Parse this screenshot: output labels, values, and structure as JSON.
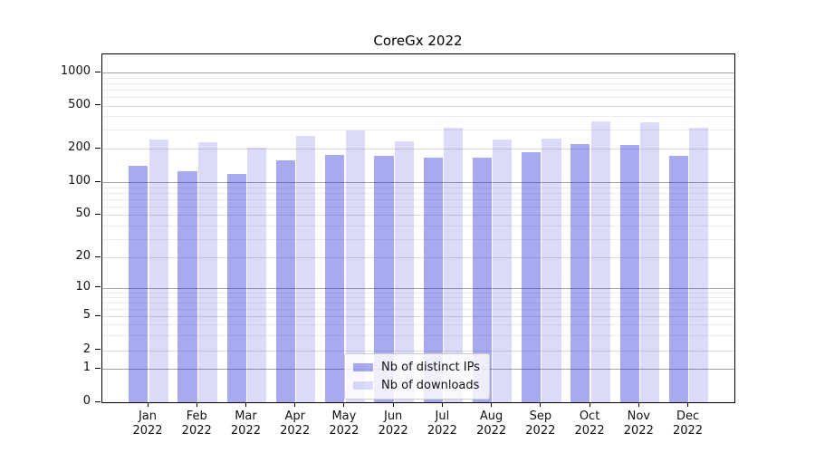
{
  "figure": {
    "title": "CoreGx 2022"
  },
  "chart_data": {
    "type": "bar",
    "title": "CoreGx 2022",
    "xlabel": "",
    "ylabel": "",
    "y_scale": "symlog",
    "y_ticks": [
      0,
      1,
      2,
      5,
      10,
      20,
      50,
      100,
      200,
      500,
      1000
    ],
    "ylim": [
      0,
      1450
    ],
    "grid": true,
    "legend_position": "lower-center",
    "categories": [
      {
        "month": "Jan",
        "year": "2022"
      },
      {
        "month": "Feb",
        "year": "2022"
      },
      {
        "month": "Mar",
        "year": "2022"
      },
      {
        "month": "Apr",
        "year": "2022"
      },
      {
        "month": "May",
        "year": "2022"
      },
      {
        "month": "Jun",
        "year": "2022"
      },
      {
        "month": "Jul",
        "year": "2022"
      },
      {
        "month": "Aug",
        "year": "2022"
      },
      {
        "month": "Sep",
        "year": "2022"
      },
      {
        "month": "Oct",
        "year": "2022"
      },
      {
        "month": "Nov",
        "year": "2022"
      },
      {
        "month": "Dec",
        "year": "2022"
      }
    ],
    "series": [
      {
        "name": "Nb of distinct IPs",
        "color": "rgba(30,30,215,0.38)",
        "values": [
          140,
          125,
          118,
          157,
          176,
          171,
          166,
          167,
          185,
          221,
          217,
          171
        ]
      },
      {
        "name": "Nb of downloads",
        "color": "rgba(30,30,215,0.16)",
        "values": [
          241,
          228,
          205,
          265,
          294,
          235,
          312,
          244,
          249,
          356,
          354,
          310
        ]
      }
    ]
  },
  "colors": {
    "grid_major": "#a3a3a3",
    "grid_mid": "#dcdcdc",
    "grid_minor": "#ececec",
    "spine": "#000000"
  }
}
